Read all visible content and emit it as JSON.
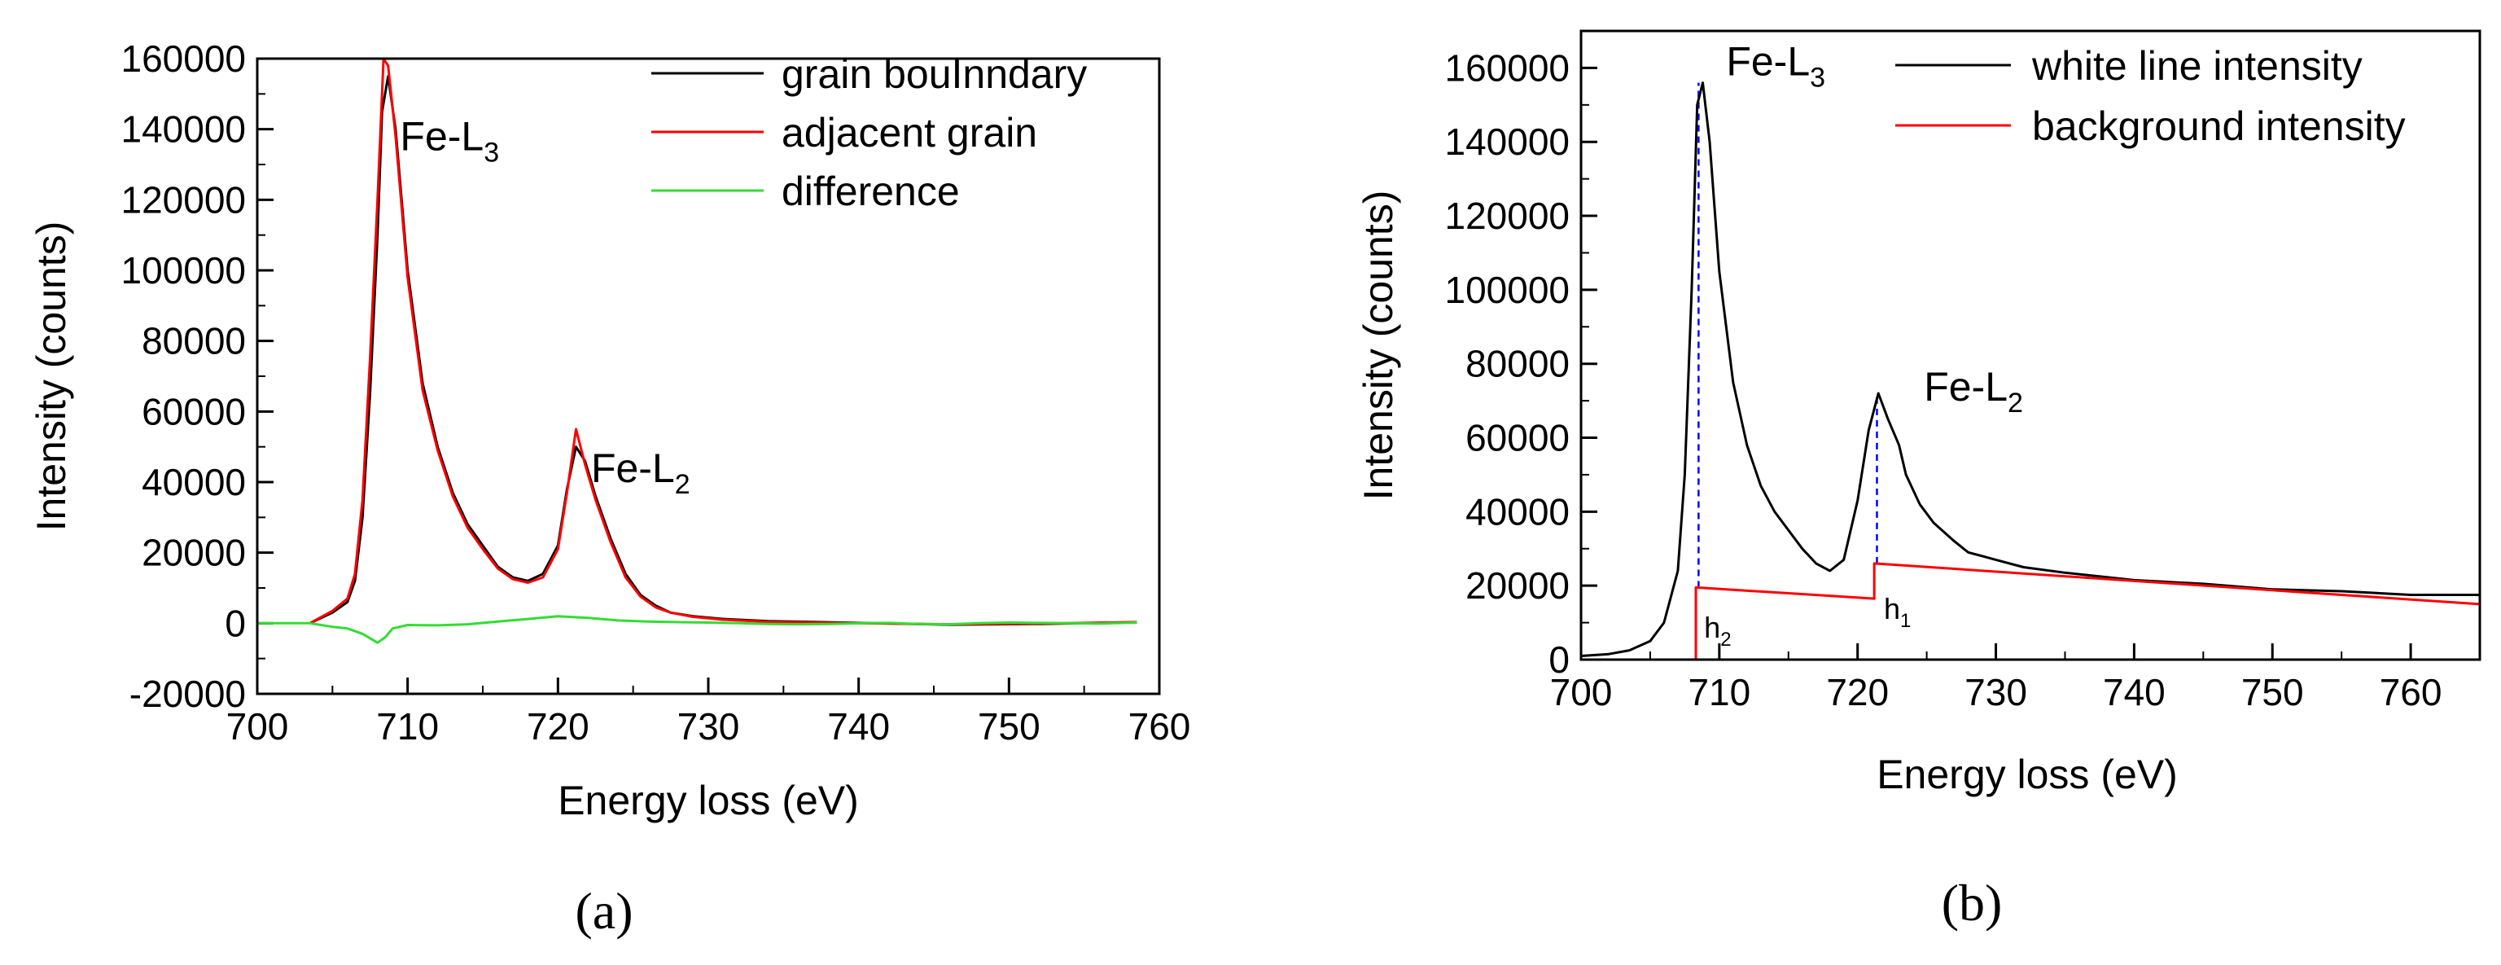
{
  "chart_data": [
    {
      "type": "line",
      "panel_label": "(a)",
      "xlabel": "Energy loss (eV)",
      "ylabel": "Intensity (counts)",
      "xlim": [
        700,
        760
      ],
      "ylim": [
        -20000,
        160000
      ],
      "xticks": [
        "700",
        "710",
        "720",
        "730",
        "740",
        "750",
        "760"
      ],
      "yticks": [
        "-20000",
        "0",
        "20000",
        "40000",
        "60000",
        "80000",
        "100000",
        "120000",
        "140000",
        "160000"
      ],
      "legend_position": "top-right",
      "series": [
        {
          "name": "grain bouInndary",
          "color": "#000000",
          "x": [
            703.5,
            705,
            706,
            706.5,
            707,
            707.5,
            708,
            708.3,
            708.7,
            709.2,
            710,
            711,
            712,
            713,
            714,
            715,
            716,
            717,
            718,
            719,
            720,
            720.6,
            721.2,
            721.8,
            722.5,
            723.5,
            724.5,
            725.5,
            726.5,
            727.5,
            729,
            731,
            734,
            740,
            746,
            752,
            758.5
          ],
          "y": [
            0,
            3000,
            6000,
            12000,
            30000,
            65000,
            110000,
            145000,
            155000,
            140000,
            100000,
            68000,
            50000,
            37000,
            28000,
            22000,
            16000,
            13000,
            12000,
            14000,
            22000,
            38000,
            50000,
            46000,
            36000,
            24000,
            14000,
            8000,
            5000,
            3000,
            2000,
            1200,
            600,
            100,
            -400,
            -200,
            300
          ]
        },
        {
          "name": "adjacent grain",
          "color": "#ff0000",
          "x": [
            703.5,
            705,
            706,
            706.5,
            707,
            707.5,
            708,
            708.4,
            708.7,
            709.2,
            710,
            711,
            712,
            713,
            714,
            715,
            716,
            717,
            718,
            719,
            720,
            720.6,
            721.2,
            721.8,
            722.5,
            723.5,
            724.5,
            725.5,
            726.5,
            727.5,
            729,
            731,
            734,
            740,
            746,
            752,
            758.5
          ],
          "y": [
            0,
            3500,
            7000,
            14000,
            35000,
            75000,
            120000,
            160000,
            158000,
            138000,
            98000,
            66000,
            49000,
            36000,
            27000,
            21000,
            15500,
            12500,
            11500,
            13000,
            21000,
            37000,
            55000,
            45000,
            35000,
            23000,
            13000,
            7500,
            4500,
            3000,
            1800,
            1000,
            400,
            0,
            -300,
            -100,
            300
          ]
        },
        {
          "name": "difference",
          "color": "#33dd33",
          "x": [
            700,
            703.5,
            705,
            706,
            707,
            708,
            708.5,
            709,
            710,
            712,
            714,
            716,
            718,
            720,
            722,
            724,
            726,
            728,
            730,
            732,
            734,
            736,
            738,
            740,
            742,
            744,
            746,
            748,
            750,
            752,
            754,
            756,
            758.5
          ],
          "y": [
            0,
            0,
            -1000,
            -1500,
            -3000,
            -5500,
            -4000,
            -1500,
            -500,
            -600,
            -300,
            500,
            1200,
            2000,
            1500,
            800,
            500,
            300,
            200,
            0,
            -200,
            -300,
            -200,
            0,
            100,
            -200,
            -300,
            0,
            200,
            100,
            0,
            -100,
            200
          ]
        }
      ],
      "annotations": [
        {
          "text": "Fe-L",
          "sub": "3",
          "x": 709.5,
          "y": 134000
        },
        {
          "text": "Fe-L",
          "sub": "2",
          "x": 722.2,
          "y": 40000
        }
      ]
    },
    {
      "type": "line",
      "panel_label": "(b)",
      "xlabel": "Energy loss (eV)",
      "ylabel": "Intensity (counts)",
      "xlim": [
        700,
        765
      ],
      "ylim": [
        0,
        170000
      ],
      "xticks": [
        "700",
        "710",
        "720",
        "730",
        "740",
        "750",
        "760"
      ],
      "yticks": [
        "0",
        "20000",
        "40000",
        "60000",
        "80000",
        "100000",
        "120000",
        "140000",
        "160000"
      ],
      "legend_position": "top-right",
      "series": [
        {
          "name": "white line intensity",
          "color": "#000000",
          "x": [
            700,
            702,
            703.5,
            705,
            706,
            707,
            707.5,
            708,
            708.4,
            708.8,
            709.3,
            710,
            711,
            712,
            713,
            714,
            715,
            716,
            717,
            718,
            719,
            720,
            720.8,
            721.5,
            722.2,
            723,
            723.5,
            724.5,
            725.5,
            727,
            728,
            729,
            730,
            732,
            735,
            740,
            745,
            750,
            755,
            760,
            765
          ],
          "y": [
            1000,
            1500,
            2500,
            5000,
            10000,
            24000,
            50000,
            100000,
            150000,
            156000,
            140000,
            105000,
            75000,
            58000,
            47000,
            40000,
            35000,
            30000,
            26000,
            24000,
            27000,
            43000,
            62000,
            72000,
            65000,
            58000,
            50000,
            42000,
            37000,
            32000,
            29000,
            28000,
            27000,
            25000,
            23500,
            21500,
            20500,
            19000,
            18500,
            17500,
            17500
          ]
        },
        {
          "name": "background intensity",
          "color": "#ff0000",
          "x": [
            700,
            708.3,
            708.3,
            721.2,
            721.2,
            765
          ],
          "y": [
            0,
            0,
            19500,
            16500,
            26000,
            15000
          ]
        }
      ],
      "guides": [
        {
          "x": 708.5,
          "y_from": 19500,
          "y_to": 156000,
          "color": "#0000ff"
        },
        {
          "x": 721.4,
          "y_from": 26000,
          "y_to": 72000,
          "color": "#0000ff"
        }
      ],
      "annotations": [
        {
          "text": "Fe-L",
          "sub": "3",
          "x": 710.5,
          "y": 158000
        },
        {
          "text": "Fe-L",
          "sub": "2",
          "x": 724.8,
          "y": 70000
        },
        {
          "text": "h",
          "sub": "2",
          "x": 708.9,
          "y": 6000,
          "small": true
        },
        {
          "text": "h",
          "sub": "1",
          "x": 721.9,
          "y": 11000,
          "small": true
        }
      ]
    }
  ]
}
